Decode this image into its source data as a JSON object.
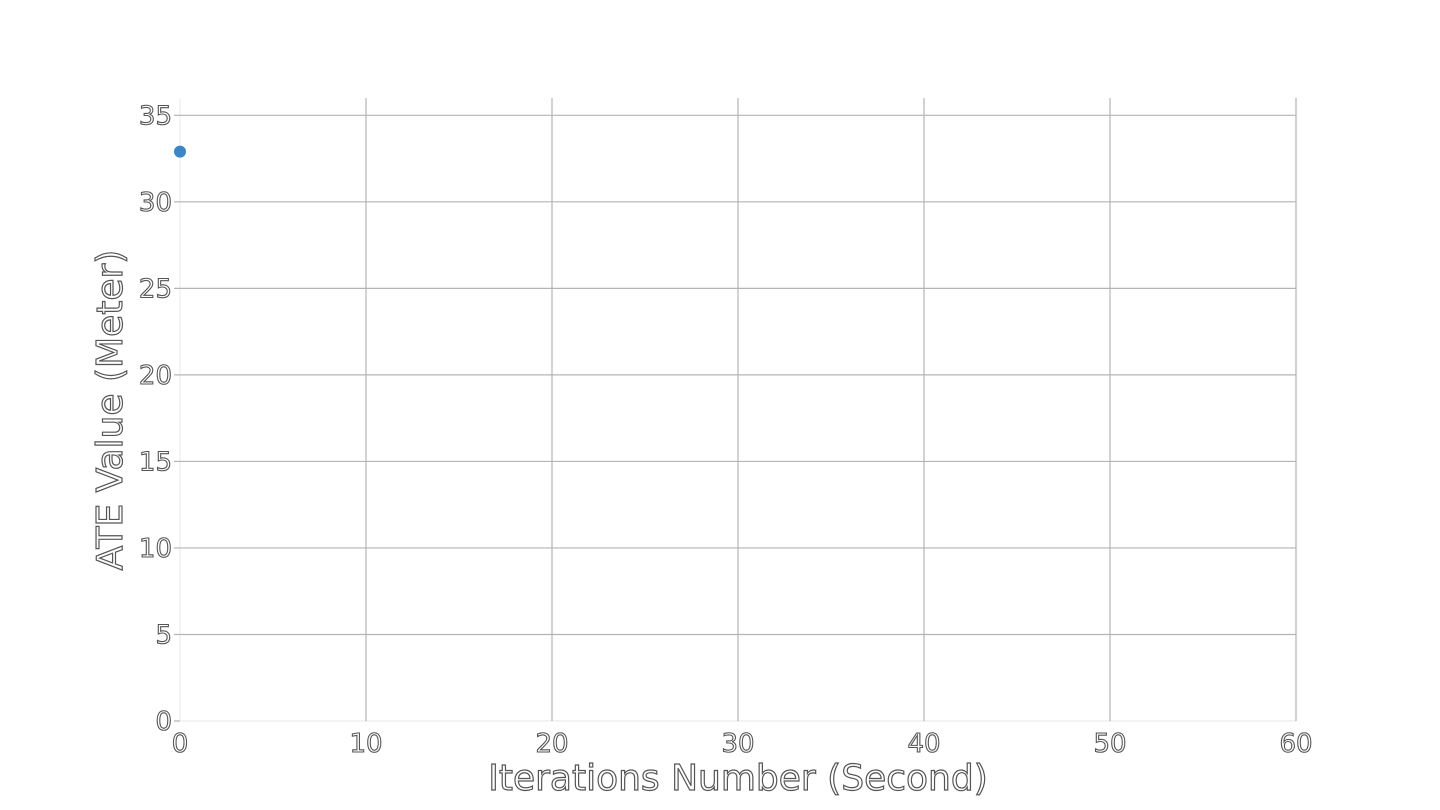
{
  "chart_data": {
    "type": "scatter",
    "title": "",
    "xlabel": "Iterations Number (Second)",
    "ylabel": "ATE Value (Meter)",
    "xlim": [
      0,
      60
    ],
    "ylim": [
      0,
      36
    ],
    "xticks": [
      0,
      10,
      20,
      30,
      40,
      50,
      60
    ],
    "yticks": [
      0,
      5,
      10,
      15,
      20,
      25,
      30,
      35
    ],
    "grid": true,
    "legend": "none",
    "series": [
      {
        "color": "#3a86c8",
        "points": [
          {
            "x": 0,
            "y": 32.9
          }
        ]
      }
    ]
  }
}
